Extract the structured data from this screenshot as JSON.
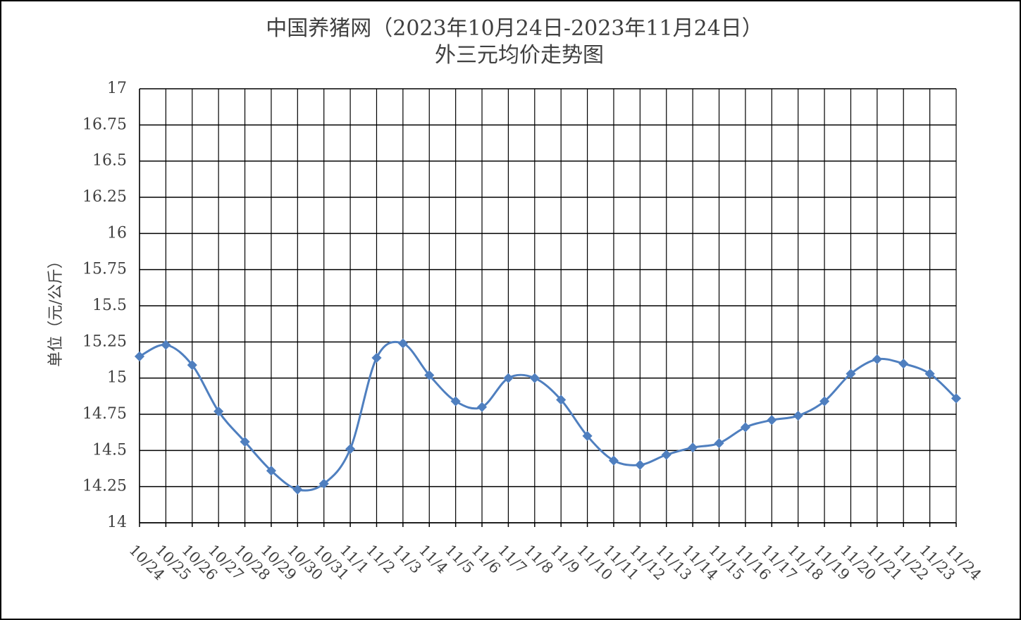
{
  "chart_data": {
    "type": "line",
    "title": "中国养猪网（2023年10月24日-2023年11月24日）",
    "subtitle": "外三元均价走势图",
    "y_label": "单位（元/公斤）",
    "categories": [
      "10/24",
      "10/25",
      "10/26",
      "10/27",
      "10/28",
      "10/29",
      "10/30",
      "10/31",
      "11/1",
      "11/2",
      "11/3",
      "11/4",
      "11/5",
      "11/6",
      "11/7",
      "11/8",
      "11/9",
      "11/10",
      "11/11",
      "11/12",
      "11/13",
      "11/14",
      "11/15",
      "11/16",
      "11/17",
      "11/18",
      "11/19",
      "11/20",
      "11/21",
      "11/22",
      "11/23",
      "11/24"
    ],
    "values": [
      15.15,
      15.23,
      15.09,
      14.77,
      14.56,
      14.36,
      14.23,
      14.27,
      14.51,
      15.14,
      15.24,
      15.02,
      14.84,
      14.8,
      15.0,
      15.0,
      14.85,
      14.6,
      14.43,
      14.4,
      14.47,
      14.52,
      14.55,
      14.66,
      14.71,
      14.74,
      14.84,
      15.03,
      15.13,
      15.1,
      15.03,
      14.86
    ],
    "color": "#4f7fbf",
    "ylim": [
      14,
      17
    ],
    "yticks": [
      14,
      14.25,
      14.5,
      14.75,
      15,
      15.25,
      15.5,
      15.75,
      16,
      16.25,
      16.5,
      16.75,
      17
    ],
    "grid": true
  }
}
